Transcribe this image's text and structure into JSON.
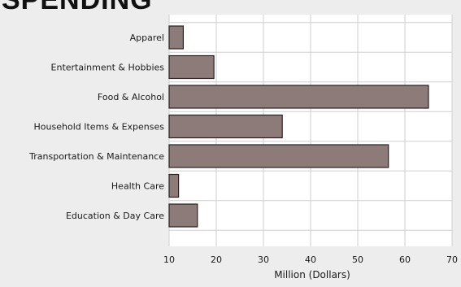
{
  "title": "SPENDING",
  "chart_data": {
    "type": "bar",
    "orientation": "horizontal",
    "categories": [
      "Apparel",
      "Entertainment & Hobbies",
      "Food & Alcohol",
      "Household Items & Expenses",
      "Transportation & Maintenance",
      "Health Care",
      "Education & Day Care"
    ],
    "values": [
      13,
      19.5,
      65,
      34,
      56.5,
      12,
      16
    ],
    "xlabel": "Million (Dollars)",
    "ylabel": "",
    "xlim": [
      10,
      70
    ],
    "xticks": [
      10,
      20,
      30,
      40,
      50,
      60,
      70
    ],
    "grid": true,
    "colors": {
      "bar_fill": "#8c7b79",
      "bar_stroke": "#2b2020",
      "plot_bg": "#ffffff",
      "grid": "#cfcfcf"
    }
  }
}
